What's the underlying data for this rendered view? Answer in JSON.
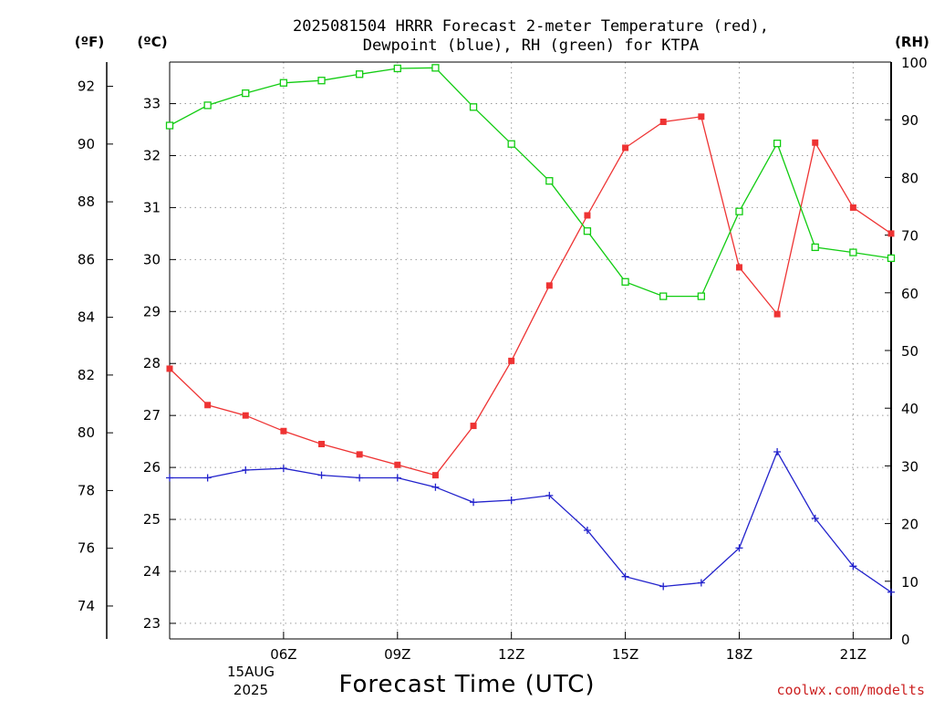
{
  "chart_data": {
    "type": "line",
    "title_line1": "2025081504 HRRR Forecast 2-meter Temperature (red),",
    "title_line2": "Dewpoint (blue), RH (green) for KTPA",
    "xlabel": "Forecast Time (UTC)",
    "left_outer_unit": "(ºF)",
    "left_inner_unit": "(ºC)",
    "right_unit": "(RH)",
    "x_hours": [
      3,
      4,
      5,
      6,
      7,
      8,
      9,
      10,
      11,
      12,
      13,
      14,
      15,
      16,
      17,
      18,
      19,
      20,
      21,
      22
    ],
    "x_range": [
      3,
      22
    ],
    "x_ticks": [
      {
        "hour": 6,
        "label": "06Z"
      },
      {
        "hour": 9,
        "label": "09Z"
      },
      {
        "hour": 12,
        "label": "12Z"
      },
      {
        "hour": 15,
        "label": "15Z"
      },
      {
        "hour": 18,
        "label": "18Z"
      },
      {
        "hour": 21,
        "label": "21Z"
      }
    ],
    "date_label": [
      "15AUG",
      "2025"
    ],
    "celsius_range": [
      22.7,
      33.8
    ],
    "celsius_ticks": [
      23,
      24,
      25,
      26,
      27,
      28,
      29,
      30,
      31,
      32,
      33
    ],
    "fahrenheit_ticks": [
      74,
      76,
      78,
      80,
      82,
      84,
      86,
      88,
      90,
      92
    ],
    "rh_range": [
      0,
      100
    ],
    "rh_ticks": [
      0,
      10,
      20,
      30,
      40,
      50,
      60,
      70,
      80,
      90,
      100
    ],
    "grid": true,
    "series": [
      {
        "name": "Temperature",
        "axis": "celsius",
        "color": "#ee3333",
        "marker": "filled-square",
        "values": [
          27.9,
          27.2,
          27.0,
          26.7,
          26.45,
          26.25,
          26.05,
          25.85,
          26.8,
          28.05,
          29.5,
          30.85,
          32.15,
          32.65,
          32.75,
          29.85,
          28.95,
          32.25,
          31.0,
          30.5
        ]
      },
      {
        "name": "Dewpoint",
        "axis": "celsius",
        "color": "#2222cc",
        "marker": "plus",
        "values": [
          25.8,
          25.8,
          25.95,
          25.98,
          25.85,
          25.8,
          25.8,
          25.62,
          25.33,
          25.37,
          25.46,
          24.79,
          23.9,
          23.71,
          23.78,
          24.45,
          26.3,
          25.02,
          24.1,
          23.6
        ]
      },
      {
        "name": "RH",
        "axis": "rh",
        "color": "#11cc11",
        "marker": "open-square",
        "values": [
          89,
          92.5,
          94.6,
          96.4,
          96.8,
          97.9,
          98.9,
          99,
          92.2,
          85.8,
          79.4,
          70.7,
          61.9,
          59.4,
          59.4,
          74.1,
          85.9,
          67.9,
          67,
          66
        ]
      }
    ]
  },
  "credit": "coolwx.com/modelts"
}
